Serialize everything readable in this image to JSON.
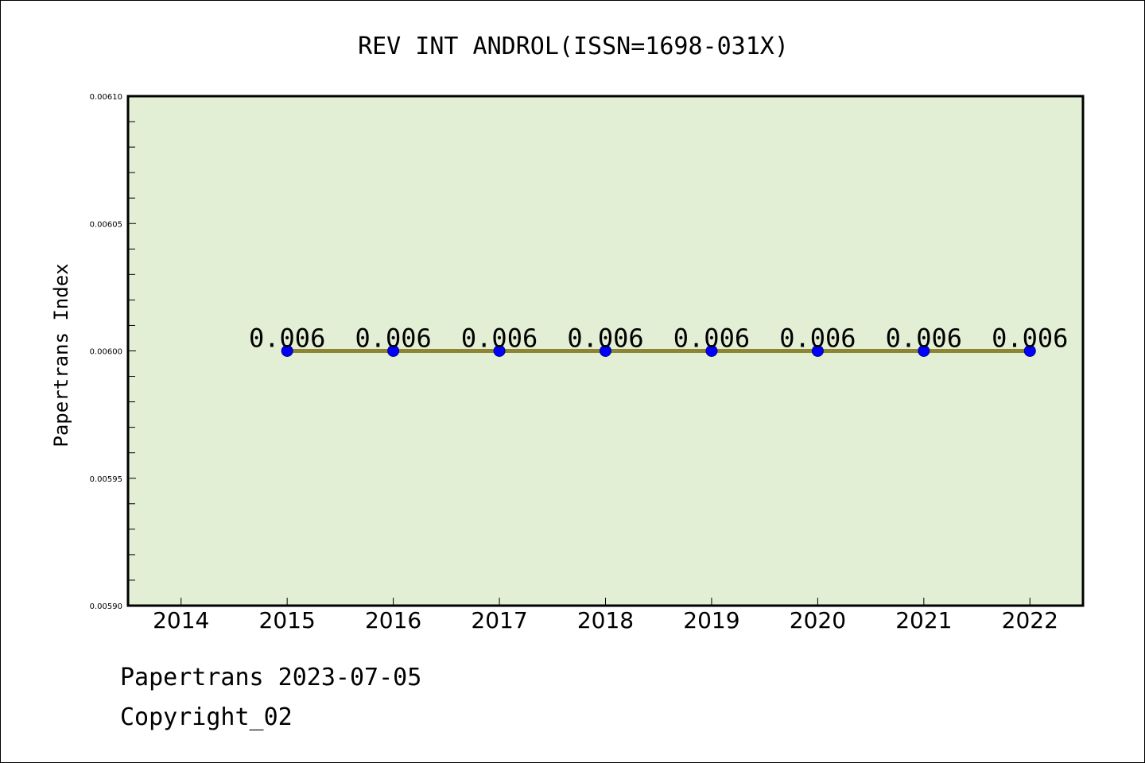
{
  "chart_data": {
    "type": "line",
    "title": "REV INT ANDROL(ISSN=1698-031X)",
    "xlabel": "",
    "ylabel": "Papertrans Index",
    "x_ticks": [
      "2014",
      "2015",
      "2016",
      "2017",
      "2018",
      "2019",
      "2020",
      "2021",
      "2022"
    ],
    "xlim": [
      2013.5,
      2022.5
    ],
    "y_ticks": [
      "0.00590",
      "0.00595",
      "0.00600",
      "0.00605",
      "0.00610"
    ],
    "ylim": [
      0.0059,
      0.0061
    ],
    "grid": false,
    "series": [
      {
        "x": [
          2015,
          2016,
          2017,
          2018,
          2019,
          2020,
          2021,
          2022
        ],
        "y": [
          0.006,
          0.006,
          0.006,
          0.006,
          0.006,
          0.006,
          0.006,
          0.006
        ],
        "data_labels": [
          "0.006",
          "0.006",
          "0.006",
          "0.006",
          "0.006",
          "0.006",
          "0.006",
          "0.006"
        ]
      }
    ]
  },
  "footer": {
    "line1": "Papertrans 2023-07-05",
    "line2": "Copyright_02"
  },
  "colors": {
    "plot_background": "#e2efd5",
    "line": "#8e8534",
    "marker": "#0000ff",
    "axis": "#000000"
  }
}
